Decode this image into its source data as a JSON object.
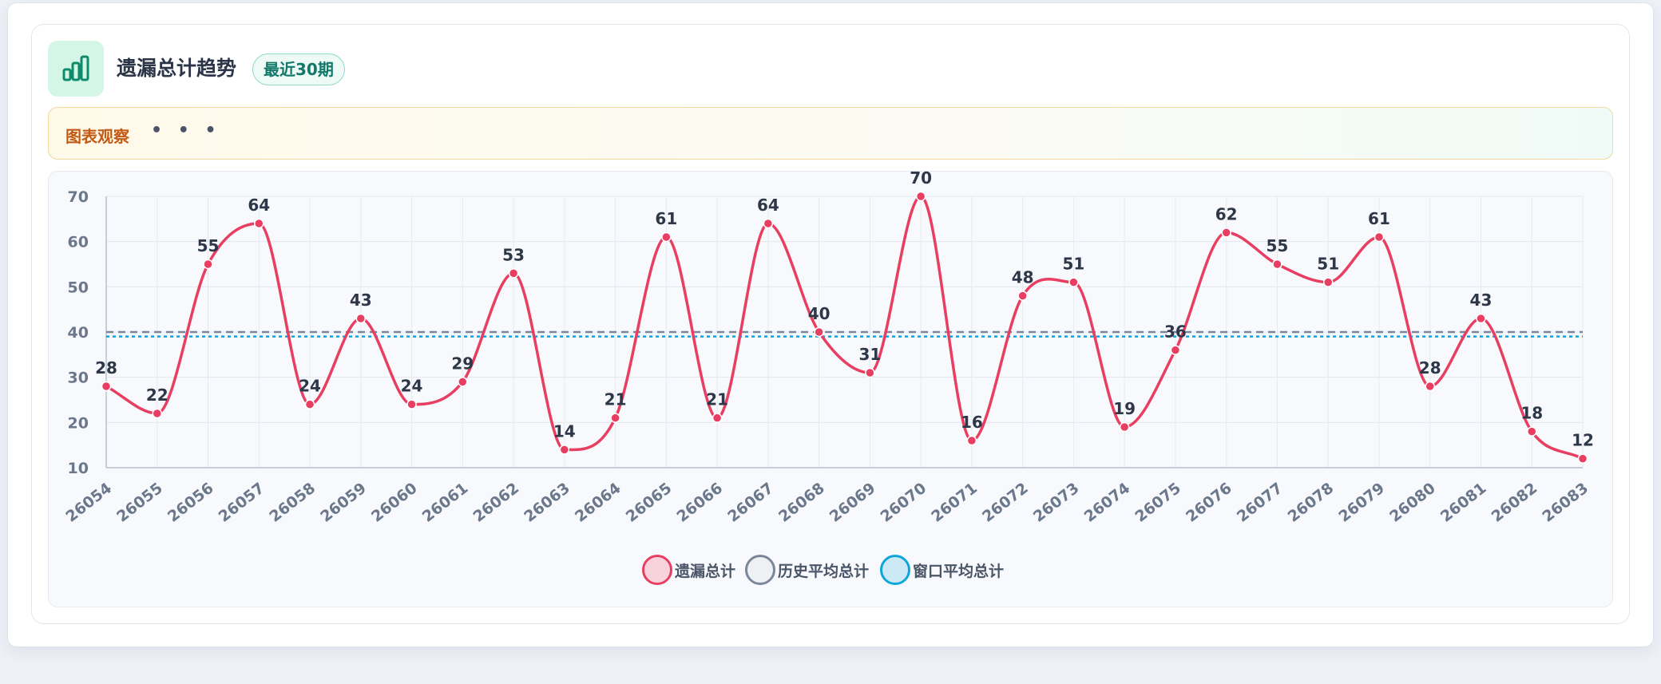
{
  "header": {
    "title": "遗漏总计趋势",
    "badge": "最近30期",
    "icon": "bar-chart-icon"
  },
  "observation": {
    "label": "图表观察",
    "dots": "• • •"
  },
  "legend": {
    "items": [
      {
        "label": "遗漏总计",
        "color": "#e83e61",
        "fill": "#f9d3dc"
      },
      {
        "label": "历史平均总计",
        "color": "#7a869a",
        "fill": "#eef0f4"
      },
      {
        "label": "窗口平均总计",
        "color": "#0ea5d9",
        "fill": "#cde9f6"
      }
    ]
  },
  "chart_data": {
    "type": "line",
    "categories": [
      "26054",
      "26055",
      "26056",
      "26057",
      "26058",
      "26059",
      "26060",
      "26061",
      "26062",
      "26063",
      "26064",
      "26065",
      "26066",
      "26067",
      "26068",
      "26069",
      "26070",
      "26071",
      "26072",
      "26073",
      "26074",
      "26075",
      "26076",
      "26077",
      "26078",
      "26079",
      "26080",
      "26081",
      "26082",
      "26083"
    ],
    "series": [
      {
        "name": "遗漏总计",
        "values": [
          28,
          22,
          55,
          64,
          24,
          43,
          24,
          29,
          53,
          14,
          21,
          61,
          21,
          64,
          40,
          31,
          70,
          16,
          48,
          51,
          19,
          36,
          62,
          55,
          51,
          61,
          28,
          43,
          18,
          12
        ],
        "color": "#e83e61",
        "style": "solid-smooth",
        "data_labels": true
      },
      {
        "name": "历史平均总计",
        "values": [
          40,
          40,
          40,
          40,
          40,
          40,
          40,
          40,
          40,
          40,
          40,
          40,
          40,
          40,
          40,
          40,
          40,
          40,
          40,
          40,
          40,
          40,
          40,
          40,
          40,
          40,
          40,
          40,
          40,
          40
        ],
        "color": "#7a869a",
        "style": "dashed"
      },
      {
        "name": "窗口平均总计",
        "values": [
          39,
          39,
          39,
          39,
          39,
          39,
          39,
          39,
          39,
          39,
          39,
          39,
          39,
          39,
          39,
          39,
          39,
          39,
          39,
          39,
          39,
          39,
          39,
          39,
          39,
          39,
          39,
          39,
          39,
          39
        ],
        "color": "#0ea5d9",
        "style": "dotted"
      }
    ],
    "yticks": [
      10,
      20,
      30,
      40,
      50,
      60,
      70
    ],
    "ylim": [
      10,
      70
    ],
    "grid": true,
    "legend_position": "bottom"
  }
}
